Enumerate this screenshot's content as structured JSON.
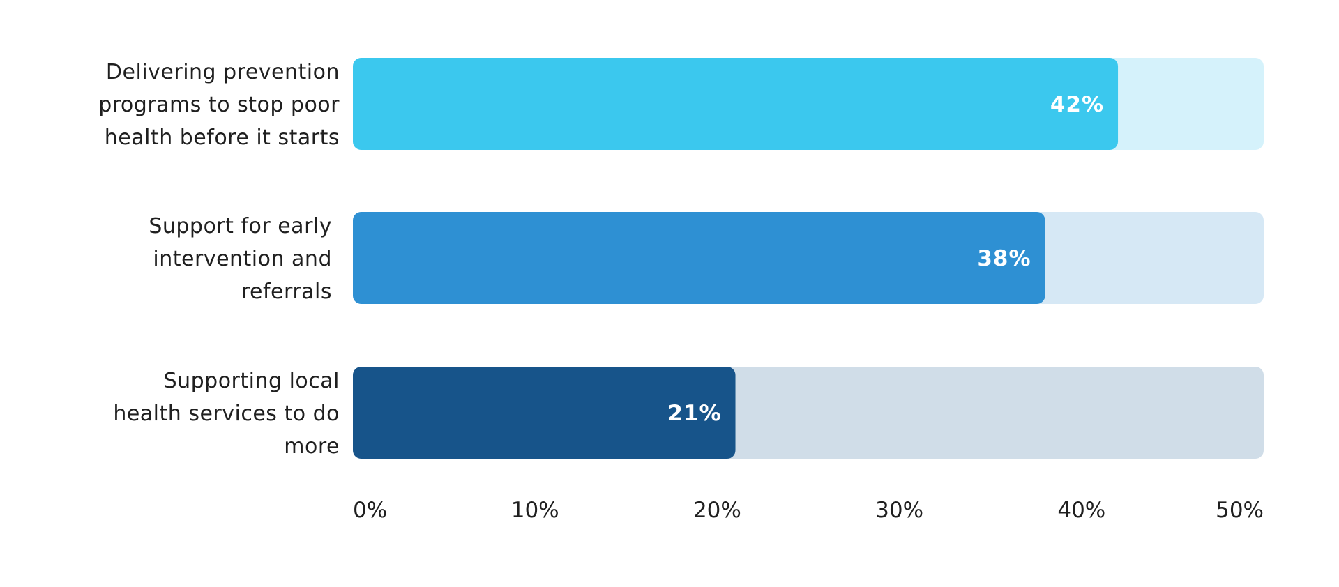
{
  "chart_data": {
    "type": "bar",
    "orientation": "horizontal",
    "categories": [
      "Delivering prevention programs to stop poor health before it starts",
      "Support for early intervention and referrals",
      "Supporting local health services to do more"
    ],
    "category_lines": [
      [
        "Delivering prevention",
        "programs to stop poor",
        "health before it starts"
      ],
      [
        "Support for early",
        "intervention and",
        "referrals"
      ],
      [
        "Supporting local",
        "health services to do",
        "more"
      ]
    ],
    "values": [
      42,
      38,
      21
    ],
    "value_labels": [
      "42%",
      "38%",
      "21%"
    ],
    "bar_colors": [
      "#3bc8ee",
      "#2e90d3",
      "#17548a"
    ],
    "track_colors": [
      "#d5f2fb",
      "#d6e8f5",
      "#d0dde8"
    ],
    "xlim": [
      0,
      50
    ],
    "x_ticks": [
      0,
      10,
      20,
      30,
      40,
      50
    ],
    "x_tick_labels": [
      "0%",
      "10%",
      "20%",
      "30%",
      "40%",
      "50%"
    ],
    "title": "",
    "xlabel": "",
    "ylabel": "",
    "grid": false,
    "legend": false
  }
}
